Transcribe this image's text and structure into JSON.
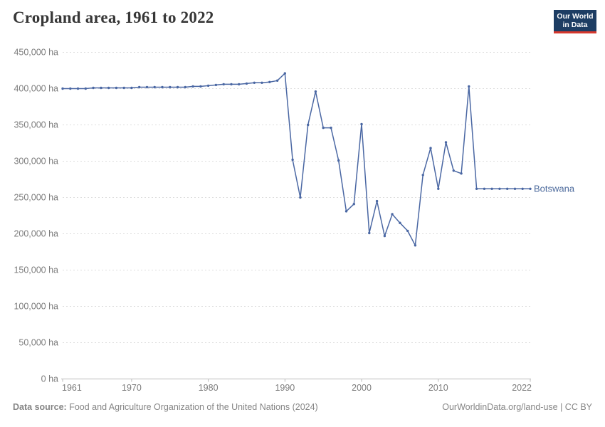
{
  "header": {
    "title": "Cropland area, 1961 to 2022"
  },
  "logo": {
    "line1": "Our World",
    "line2": "in Data",
    "bg_color": "#1d3d63",
    "bar_color": "#d7382d"
  },
  "footer": {
    "source_label": "Data source:",
    "source_text": " Food and Agriculture Organization of the United Nations (2024)",
    "right_text": "OurWorldinData.org/land-use | CC BY"
  },
  "theme": {
    "line_color": "#4a67a3",
    "series_label_color": "#4c6a9c",
    "grid_color": "#dddddd",
    "axis_color": "#bbbbbb",
    "tick_label_color": "#7c7c7c",
    "title_color": "#373737",
    "footer_color": "#858585",
    "background": "#ffffff"
  },
  "chart_data": {
    "type": "line",
    "title": "Cropland area, 1961 to 2022",
    "xlabel": "",
    "ylabel": "",
    "y_unit": " ha",
    "xlim": [
      1961,
      2022
    ],
    "ylim": [
      0,
      450000
    ],
    "x_ticks": [
      1961,
      1970,
      1980,
      1990,
      2000,
      2010,
      2022
    ],
    "y_ticks": [
      0,
      50000,
      100000,
      150000,
      200000,
      250000,
      300000,
      350000,
      400000,
      450000
    ],
    "grid": "horizontal-dashed",
    "legend": "series label at right end of line",
    "x": [
      1961,
      1962,
      1963,
      1964,
      1965,
      1966,
      1967,
      1968,
      1969,
      1970,
      1971,
      1972,
      1973,
      1974,
      1975,
      1976,
      1977,
      1978,
      1979,
      1980,
      1981,
      1982,
      1983,
      1984,
      1985,
      1986,
      1987,
      1988,
      1989,
      1990,
      1991,
      1992,
      1993,
      1994,
      1995,
      1996,
      1997,
      1998,
      1999,
      2000,
      2001,
      2002,
      2003,
      2004,
      2005,
      2006,
      2007,
      2008,
      2009,
      2010,
      2011,
      2012,
      2013,
      2014,
      2015,
      2016,
      2017,
      2018,
      2019,
      2020,
      2021,
      2022
    ],
    "series": [
      {
        "name": "Botswana",
        "color": "#4a67a3",
        "values": [
          400000,
          400000,
          400000,
          400000,
          401000,
          401000,
          401000,
          401000,
          401000,
          401000,
          402000,
          402000,
          402000,
          402000,
          402000,
          402000,
          402000,
          403000,
          403000,
          404000,
          405000,
          406000,
          406000,
          406000,
          407000,
          408000,
          408000,
          409000,
          411000,
          421000,
          302000,
          250000,
          350000,
          396000,
          346000,
          346000,
          301000,
          231000,
          241000,
          351000,
          201000,
          245000,
          197000,
          227000,
          215000,
          204000,
          184000,
          281000,
          318000,
          262000,
          326000,
          287000,
          283000,
          403000,
          262000,
          262000,
          262000,
          262000,
          262000,
          262000,
          262000,
          262000
        ]
      }
    ]
  }
}
